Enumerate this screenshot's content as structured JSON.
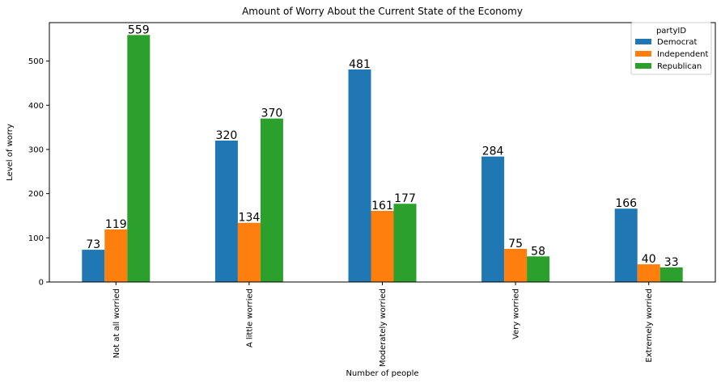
{
  "chart_data": {
    "type": "bar",
    "title": "Amount of Worry About the Current State of the Economy",
    "xlabel": "Number of people",
    "ylabel": "Level of worry",
    "categories": [
      "Not at all worried",
      "A little worried",
      "Moderately worried",
      "Very worried",
      "Extremely worried"
    ],
    "series": [
      {
        "name": "Democrat",
        "color": "#1f77b4",
        "values": [
          73,
          320,
          481,
          284,
          166
        ]
      },
      {
        "name": "Independent",
        "color": "#ff7f0e",
        "values": [
          119,
          134,
          161,
          75,
          40
        ]
      },
      {
        "name": "Republican",
        "color": "#2ca02c",
        "values": [
          559,
          370,
          177,
          58,
          33
        ]
      }
    ],
    "ylim": [
      0,
      587
    ],
    "yticks": [
      0,
      100,
      200,
      300,
      400,
      500
    ],
    "legend": {
      "title": "partyID",
      "placement": "top-right"
    },
    "grid": false
  }
}
